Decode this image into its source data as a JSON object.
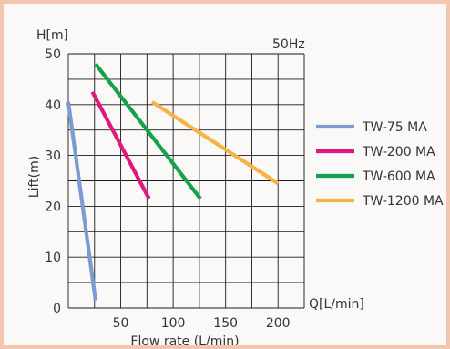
{
  "chart_data": {
    "type": "line",
    "title": "",
    "frequency_label": "50Hz",
    "y_unit_label": "H[m]",
    "x_unit_label": "Q[L/min]",
    "xlabel": "Flow rate (L/min)",
    "ylabel": "Lift(m)",
    "xlim": [
      0,
      225
    ],
    "ylim": [
      0,
      50
    ],
    "x_ticks": [
      50,
      100,
      150,
      200
    ],
    "y_ticks": [
      0,
      10,
      20,
      30,
      40,
      50
    ],
    "grid": true,
    "legend_position": "right",
    "series": [
      {
        "name": "TW-75 MA",
        "color": "#7b9bd1",
        "points": [
          [
            0,
            40.5
          ],
          [
            26,
            1.5
          ]
        ]
      },
      {
        "name": "TW-200 MA",
        "color": "#e0187d",
        "points": [
          [
            23,
            42.5
          ],
          [
            77,
            21.5
          ]
        ]
      },
      {
        "name": "TW-600 MA",
        "color": "#14a24a",
        "points": [
          [
            26,
            48
          ],
          [
            126,
            21.5
          ]
        ]
      },
      {
        "name": "TW-1200 MA",
        "color": "#f7b24a",
        "points": [
          [
            80,
            40.5
          ],
          [
            200,
            24.5
          ]
        ]
      }
    ]
  }
}
